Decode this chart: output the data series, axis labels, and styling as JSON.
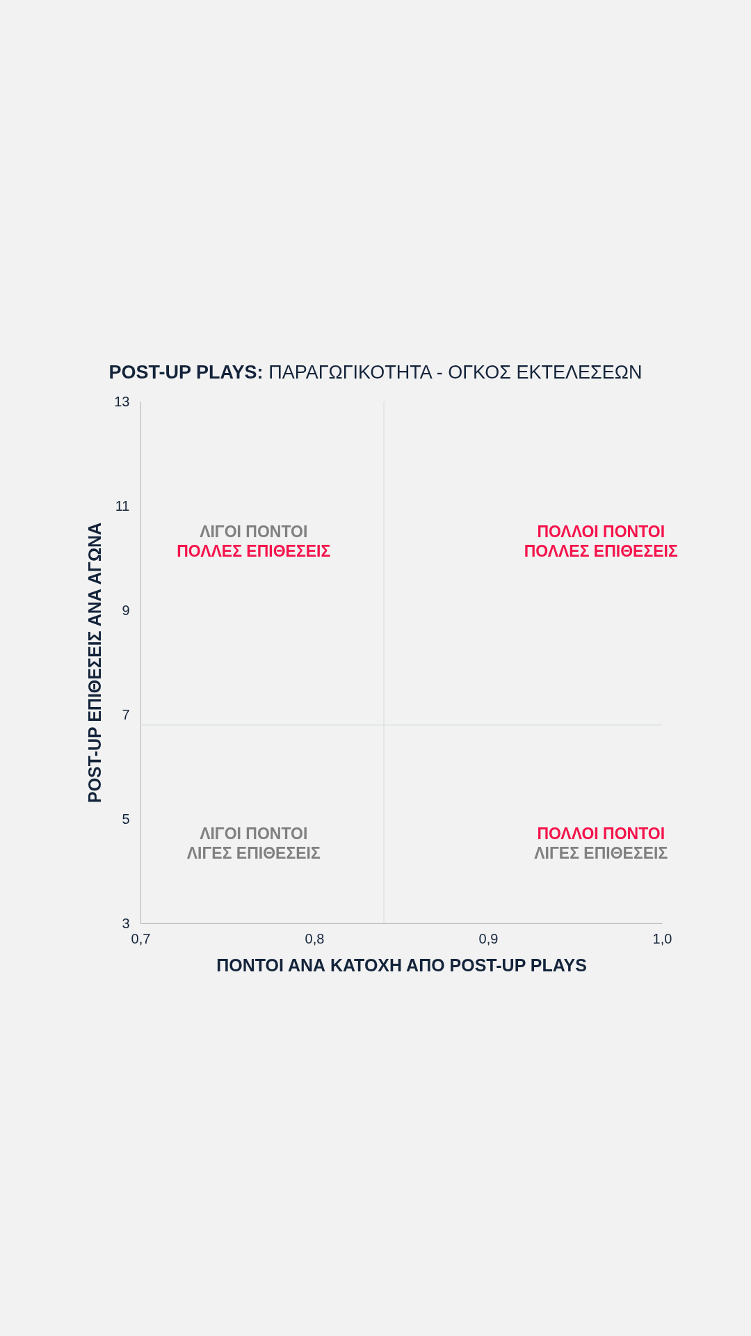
{
  "chart_data": {
    "type": "scatter",
    "title": "POST-UP PLAYS: ΠΑΡΑΓΩΓΙΚΟΤΗΤΑ - ΟΓΚΟΣ ΕΚΤΕΛΕΣΕΩΝ",
    "xlabel": "ΠΟΝΤΟΙ ΑΝΑ ΚΑΤΟΧΗ ΑΠΟ POST-UP PLAYS",
    "ylabel": "POST-UP ΕΠΙΘΕΣΕΙΣ ΑΝΑ ΑΓΩΝΑ",
    "xlim": [
      0.7,
      1.0
    ],
    "xticks": [
      {
        "value": 0.7,
        "label": "0,7"
      },
      {
        "value": 0.8,
        "label": "0,8"
      },
      {
        "value": 0.9,
        "label": "0,9"
      },
      {
        "value": 1.0,
        "label": "1,0"
      }
    ],
    "ylim": [
      3,
      13
    ],
    "yticks": [
      3,
      5,
      7,
      9,
      11,
      13
    ],
    "ref_lines": [
      {
        "axis": "x",
        "value": 0.84,
        "color": "#d3dedd"
      },
      {
        "axis": "y",
        "value": 6.8,
        "color": "#d3dedd"
      }
    ],
    "annotations": [
      "ΛΙΓΟΙ ΠΟΝΤΟΙ",
      "ΠΟΛΛΕΣ ΕΠΙΘΕΣΕΙΣ",
      "ΠΟΛΛΟΙ ΠΟΝΤΟΙ",
      "ΠΟΛΛΕΣ ΕΠΙΘΕΣΕΙΣ",
      "ΛΙΓΟΙ ΠΟΝΤΟΙ",
      "ΛΙΓΕΣ ΕΠΙΘΕΣΕΙΣ",
      "ΠΟΛΛΟΙ ΠΟΝΤΟΙ",
      "ΛΙΓΕΣ ΕΠΙΘΕΣΕΙΣ"
    ]
  }
}
